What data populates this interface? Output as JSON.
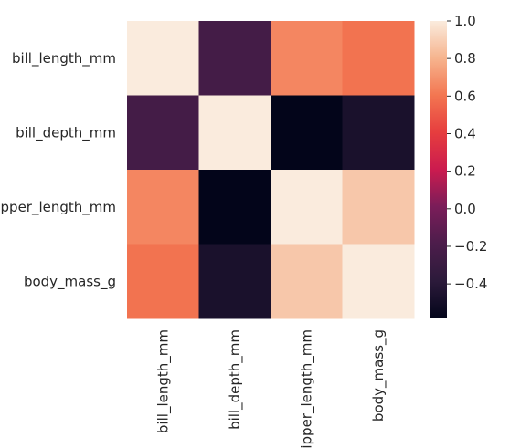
{
  "chart_data": {
    "type": "heatmap",
    "title": "",
    "xlabel": "",
    "ylabel": "",
    "rows": [
      "bill_length_mm",
      "bill_depth_mm",
      "flipper_length_mm",
      "body_mass_g"
    ],
    "columns": [
      "bill_length_mm",
      "bill_depth_mm",
      "flipper_length_mm",
      "body_mass_g"
    ],
    "values": [
      [
        1.0,
        -0.235,
        0.656,
        0.595
      ],
      [
        -0.235,
        1.0,
        -0.584,
        -0.472
      ],
      [
        0.656,
        -0.584,
        1.0,
        0.871
      ],
      [
        0.595,
        -0.472,
        0.871,
        1.0
      ]
    ],
    "colorbar": {
      "colormap": "rocket",
      "vmin": -0.584,
      "vmax": 1.0,
      "ticks": [
        1.0,
        0.8,
        0.6,
        0.4,
        0.2,
        0.0,
        -0.2,
        -0.4
      ],
      "tick_labels": [
        "1.0",
        "0.8",
        "0.6",
        "0.4",
        "0.2",
        "0.0",
        "−0.2",
        "−0.4"
      ]
    },
    "grid": false,
    "legend": "colorbar-right"
  }
}
